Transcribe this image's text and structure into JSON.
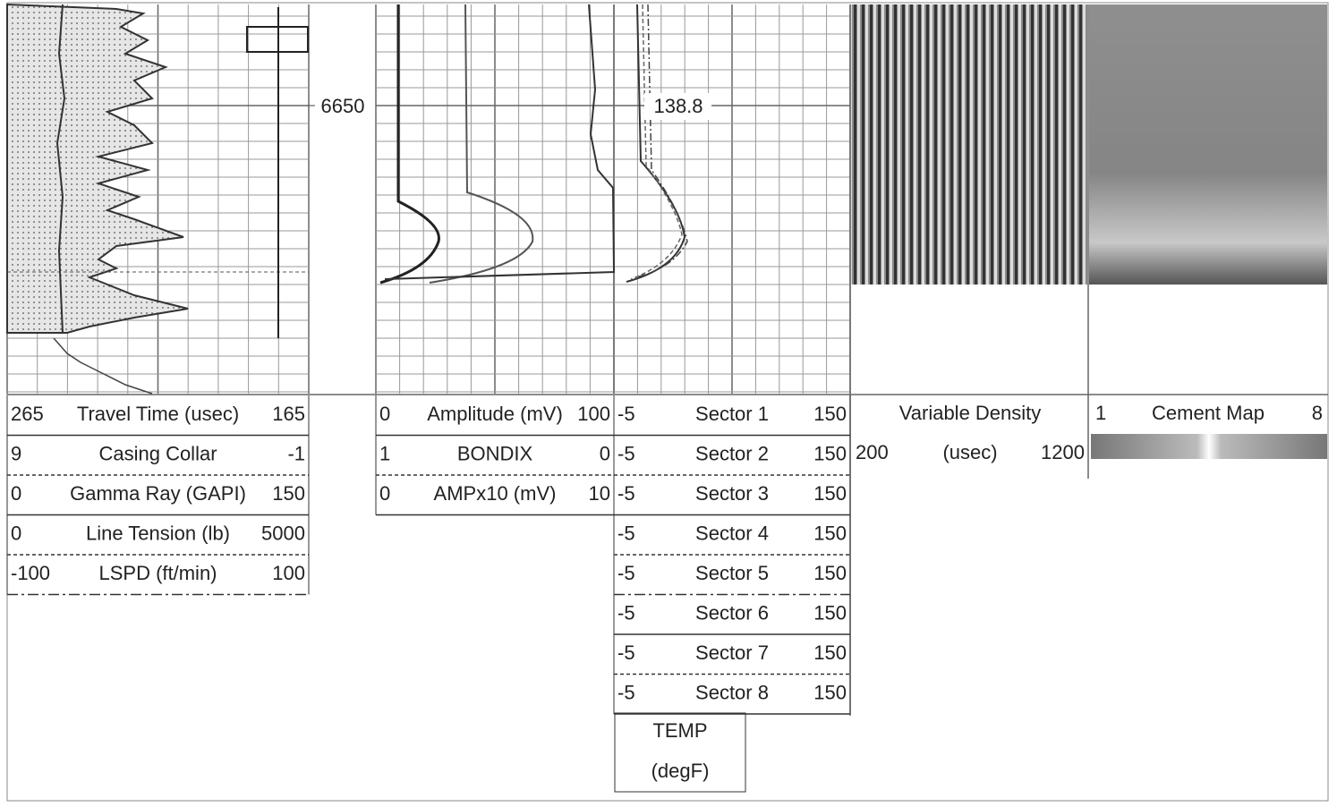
{
  "depth_label": "6650",
  "annotation": "138.8",
  "tracks": [
    {
      "curves": [
        {
          "left": "265",
          "name": "Travel Time (usec)",
          "right": "165"
        },
        {
          "left": "9",
          "name": "Casing Collar",
          "right": "-1"
        },
        {
          "left": "0",
          "name": "Gamma Ray (GAPI)",
          "right": "150"
        },
        {
          "left": "0",
          "name": "Line Tension (lb)",
          "right": "5000"
        },
        {
          "left": "-100",
          "name": "LSPD (ft/min)",
          "right": "100"
        }
      ]
    },
    {
      "curves": [
        {
          "left": "0",
          "name": "Amplitude (mV)",
          "right": "100"
        },
        {
          "left": "1",
          "name": "BONDIX",
          "right": "0"
        },
        {
          "left": "0",
          "name": "AMPx10 (mV)",
          "right": "10"
        }
      ]
    },
    {
      "curves": [
        {
          "left": "-5",
          "name": "Sector 1",
          "right": "150"
        },
        {
          "left": "-5",
          "name": "Sector 2",
          "right": "150"
        },
        {
          "left": "-5",
          "name": "Sector 3",
          "right": "150"
        },
        {
          "left": "-5",
          "name": "Sector 4",
          "right": "150"
        },
        {
          "left": "-5",
          "name": "Sector 5",
          "right": "150"
        },
        {
          "left": "-5",
          "name": "Sector 6",
          "right": "150"
        },
        {
          "left": "-5",
          "name": "Sector 7",
          "right": "150"
        },
        {
          "left": "-5",
          "name": "Sector 8",
          "right": "150"
        }
      ]
    }
  ],
  "temp": {
    "name": "TEMP",
    "unit": "(degF)"
  },
  "vdl": {
    "name": "Variable Density",
    "left": "200",
    "unit": "(usec)",
    "right": "1200"
  },
  "cement_map": {
    "left": "1",
    "name": "Cement Map",
    "right": "8"
  }
}
